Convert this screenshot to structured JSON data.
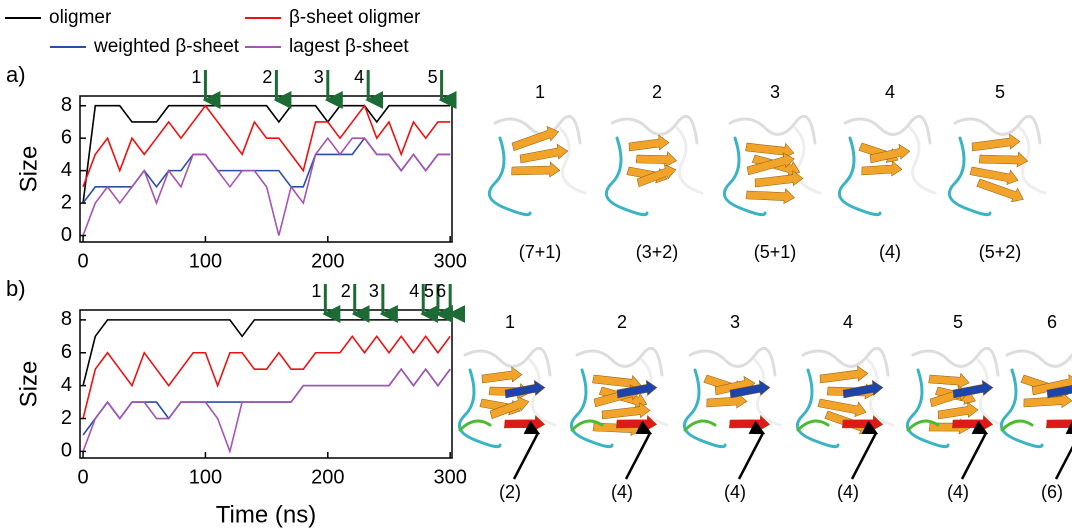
{
  "chart_data": [
    {
      "type": "line",
      "panel": "a)",
      "ylabel": "Size",
      "x": [
        0,
        10,
        20,
        30,
        40,
        50,
        60,
        70,
        80,
        90,
        100,
        110,
        120,
        130,
        140,
        150,
        160,
        170,
        180,
        190,
        200,
        210,
        220,
        230,
        240,
        250,
        260,
        270,
        280,
        290,
        300
      ],
      "series": [
        {
          "name": "oligmer",
          "color": "#000000",
          "values": [
            2,
            8,
            8,
            8,
            7,
            7,
            7,
            8,
            8,
            8,
            8,
            8,
            8,
            8,
            8,
            8,
            7,
            8,
            8,
            8,
            7,
            8,
            8,
            8,
            7,
            8,
            8,
            8,
            8,
            8,
            8
          ]
        },
        {
          "name": "β-sheet oligmer",
          "color": "#ee1111",
          "values": [
            3,
            5,
            6,
            4,
            6,
            5,
            6,
            7,
            6,
            7,
            8,
            7,
            6,
            5,
            7,
            6,
            6,
            5,
            4,
            7,
            7,
            6,
            7,
            8,
            6,
            7,
            5,
            7,
            6,
            7,
            7
          ]
        },
        {
          "name": "weighted β-sheet",
          "color": "#2a4fa8",
          "values": [
            2,
            3,
            3,
            3,
            3,
            4,
            3,
            4,
            4,
            5,
            5,
            4,
            4,
            4,
            4,
            4,
            4,
            3,
            3,
            5,
            5,
            5,
            5,
            6,
            5,
            5,
            4,
            5,
            4,
            5,
            5
          ]
        },
        {
          "name": "lagest β-sheet",
          "color": "#a455b4",
          "values": [
            0,
            2,
            3,
            2,
            3,
            4,
            2,
            4,
            3,
            5,
            5,
            4,
            3,
            4,
            4,
            3,
            0,
            3,
            2,
            5,
            6,
            5,
            6,
            6,
            5,
            5,
            4,
            5,
            4,
            5,
            5
          ]
        }
      ],
      "xlim": [
        -2.5,
        301.5
      ],
      "xticks": [
        0,
        100,
        200,
        300
      ],
      "ylim": [
        -0.4,
        8.6
      ],
      "yticks": [
        0,
        2,
        4,
        6,
        8
      ],
      "annotations": [
        {
          "label": "1",
          "x": 100
        },
        {
          "label": "2",
          "x": 158
        },
        {
          "label": "3",
          "x": 200
        },
        {
          "label": "4",
          "x": 233
        },
        {
          "label": "5",
          "x": 293
        }
      ]
    },
    {
      "type": "line",
      "panel": "b)",
      "ylabel": "Size",
      "xlabel": "Time (ns)",
      "x": [
        0,
        10,
        20,
        30,
        40,
        50,
        60,
        70,
        80,
        90,
        100,
        110,
        120,
        130,
        140,
        150,
        160,
        170,
        180,
        190,
        200,
        210,
        220,
        230,
        240,
        250,
        260,
        270,
        280,
        290,
        300
      ],
      "series": [
        {
          "color": "#000000",
          "values": [
            4,
            7,
            8,
            8,
            8,
            8,
            8,
            8,
            8,
            8,
            8,
            8,
            8,
            7,
            8,
            8,
            8,
            8,
            8,
            8,
            8,
            8,
            8,
            8,
            8,
            8,
            8,
            8,
            8,
            8,
            8
          ]
        },
        {
          "color": "#ee1111",
          "values": [
            2,
            5,
            6,
            5,
            4,
            6,
            5,
            4,
            5,
            6,
            6,
            4,
            6,
            6,
            5,
            5,
            6,
            5,
            5,
            6,
            6,
            6,
            7,
            6,
            7,
            6,
            7,
            6,
            7,
            6,
            7
          ]
        },
        {
          "color": "#2a4fa8",
          "values": [
            1,
            2,
            3,
            2,
            3,
            3,
            3,
            2,
            3,
            3,
            3,
            3,
            3,
            3,
            3,
            3,
            3,
            3,
            4,
            4,
            4,
            4,
            4,
            4,
            4,
            4,
            5,
            4,
            5,
            4,
            5
          ]
        },
        {
          "color": "#a455b4",
          "values": [
            0,
            2,
            3,
            2,
            3,
            3,
            2,
            2,
            3,
            3,
            3,
            2,
            0,
            3,
            3,
            3,
            3,
            3,
            4,
            4,
            4,
            4,
            4,
            4,
            4,
            4,
            5,
            4,
            5,
            4,
            5
          ]
        }
      ],
      "xlim": [
        -2.5,
        301.5
      ],
      "xticks": [
        0,
        100,
        200,
        300
      ],
      "ylim": [
        -0.4,
        8.6
      ],
      "yticks": [
        0,
        2,
        4,
        6,
        8
      ],
      "annotations": [
        {
          "label": "1",
          "x": 198
        },
        {
          "label": "2",
          "x": 222
        },
        {
          "label": "3",
          "x": 245
        },
        {
          "label": "4",
          "x": 278
        },
        {
          "label": "5",
          "x": 290
        },
        {
          "label": "6",
          "x": 300
        }
      ]
    }
  ],
  "structures": [
    {
      "numbers": [
        "1",
        "2",
        "3",
        "4",
        "5"
      ],
      "captions": [
        "(7+1)",
        "(3+2)",
        "(5+1)",
        "(4)",
        "(5+2)"
      ]
    },
    {
      "numbers": [
        "1",
        "2",
        "3",
        "4",
        "5",
        "6"
      ],
      "captions": [
        "(2)",
        "(4)",
        "(4)",
        "(4)",
        "(4)",
        "(6)"
      ]
    }
  ]
}
